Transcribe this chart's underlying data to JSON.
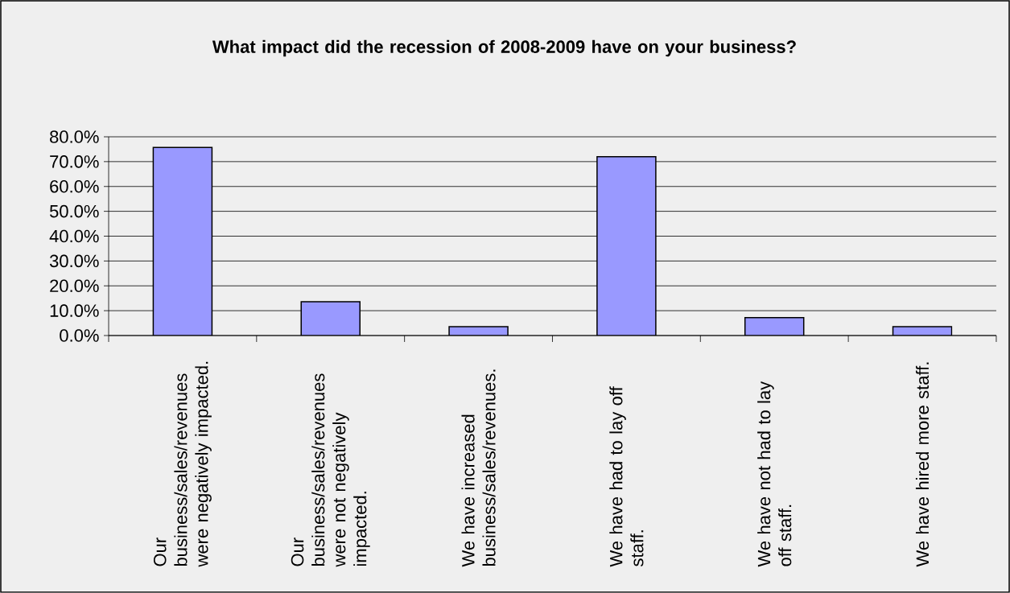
{
  "chart_data": {
    "type": "bar",
    "title": "What impact did the recession of 2008-2009 have on your business?",
    "categories": [
      "Our business/sales/revenues were negatively impacted.",
      "Our business/sales/revenues were not negatively impacted.",
      "We have increased business/sales/revenues.",
      "We have had to lay off staff.",
      "We have not had to lay off staff.",
      "We have hired more staff."
    ],
    "values": [
      75.7,
      13.6,
      3.6,
      72.0,
      7.2,
      3.6
    ],
    "color": "#9999ff",
    "ylim": [
      0,
      80
    ],
    "yticks": [
      {
        "value": 0,
        "label": "0.0%"
      },
      {
        "value": 10,
        "label": "10.0%"
      },
      {
        "value": 20,
        "label": "20.0%"
      },
      {
        "value": 30,
        "label": "30.0%"
      },
      {
        "value": 40,
        "label": "40.0%"
      },
      {
        "value": 50,
        "label": "50.0%"
      },
      {
        "value": 60,
        "label": "60.0%"
      },
      {
        "value": 70,
        "label": "70.0%"
      },
      {
        "value": 80,
        "label": "80.0%"
      }
    ],
    "grid": "y"
  }
}
